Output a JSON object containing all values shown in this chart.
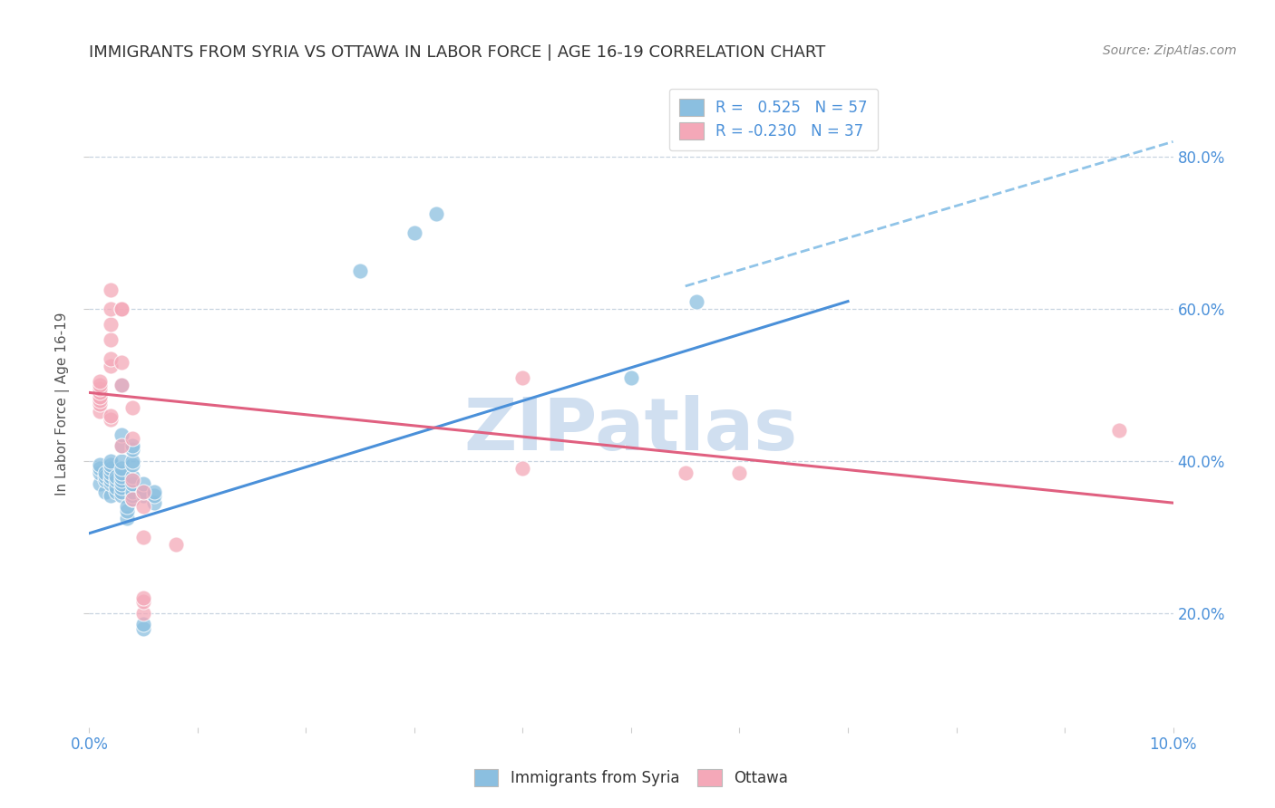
{
  "title": "IMMIGRANTS FROM SYRIA VS OTTAWA IN LABOR FORCE | AGE 16-19 CORRELATION CHART",
  "source": "Source: ZipAtlas.com",
  "ylabel": "In Labor Force | Age 16-19",
  "xlim": [
    0.0,
    0.1
  ],
  "ylim": [
    0.05,
    0.9
  ],
  "ytick_values": [
    0.2,
    0.4,
    0.6,
    0.8
  ],
  "ytick_labels": [
    "20.0%",
    "40.0%",
    "60.0%",
    "80.0%"
  ],
  "xtick_values": [
    0.0,
    0.01,
    0.02,
    0.03,
    0.04,
    0.05,
    0.06,
    0.07,
    0.08,
    0.09,
    0.1
  ],
  "xtick_labels": [
    "0.0%",
    "",
    "",
    "",
    "",
    "",
    "",
    "",
    "",
    "",
    "10.0%"
  ],
  "legend_r_blue": "0.525",
  "legend_n_blue": "57",
  "legend_r_pink": "-0.230",
  "legend_n_pink": "37",
  "blue_color": "#8bbfe0",
  "pink_color": "#f4a8b8",
  "trendline_blue": "#4a90d9",
  "trendline_pink": "#e06080",
  "trendline_dashed_color": "#90c4e8",
  "watermark_color": "#d0dff0",
  "background_color": "#ffffff",
  "grid_color": "#c8d4e0",
  "title_color": "#333333",
  "source_color": "#888888",
  "axis_label_color": "#555555",
  "tick_color": "#4a90d9",
  "blue_scatter": [
    [
      0.001,
      0.37
    ],
    [
      0.001,
      0.385
    ],
    [
      0.001,
      0.39
    ],
    [
      0.001,
      0.395
    ],
    [
      0.0015,
      0.36
    ],
    [
      0.0015,
      0.375
    ],
    [
      0.0015,
      0.38
    ],
    [
      0.0015,
      0.385
    ],
    [
      0.002,
      0.355
    ],
    [
      0.002,
      0.37
    ],
    [
      0.002,
      0.375
    ],
    [
      0.002,
      0.38
    ],
    [
      0.002,
      0.385
    ],
    [
      0.002,
      0.39
    ],
    [
      0.002,
      0.395
    ],
    [
      0.002,
      0.4
    ],
    [
      0.0025,
      0.36
    ],
    [
      0.0025,
      0.365
    ],
    [
      0.0025,
      0.375
    ],
    [
      0.0025,
      0.38
    ],
    [
      0.003,
      0.355
    ],
    [
      0.003,
      0.36
    ],
    [
      0.003,
      0.365
    ],
    [
      0.003,
      0.37
    ],
    [
      0.003,
      0.375
    ],
    [
      0.003,
      0.38
    ],
    [
      0.003,
      0.385
    ],
    [
      0.003,
      0.39
    ],
    [
      0.003,
      0.4
    ],
    [
      0.003,
      0.42
    ],
    [
      0.003,
      0.435
    ],
    [
      0.003,
      0.5
    ],
    [
      0.0035,
      0.325
    ],
    [
      0.0035,
      0.335
    ],
    [
      0.0035,
      0.34
    ],
    [
      0.004,
      0.35
    ],
    [
      0.004,
      0.355
    ],
    [
      0.004,
      0.36
    ],
    [
      0.004,
      0.37
    ],
    [
      0.004,
      0.38
    ],
    [
      0.004,
      0.395
    ],
    [
      0.004,
      0.4
    ],
    [
      0.004,
      0.415
    ],
    [
      0.004,
      0.42
    ],
    [
      0.005,
      0.18
    ],
    [
      0.005,
      0.185
    ],
    [
      0.005,
      0.355
    ],
    [
      0.005,
      0.36
    ],
    [
      0.005,
      0.37
    ],
    [
      0.006,
      0.345
    ],
    [
      0.006,
      0.355
    ],
    [
      0.006,
      0.36
    ],
    [
      0.025,
      0.65
    ],
    [
      0.03,
      0.7
    ],
    [
      0.032,
      0.725
    ],
    [
      0.05,
      0.51
    ],
    [
      0.056,
      0.61
    ]
  ],
  "pink_scatter": [
    [
      0.001,
      0.465
    ],
    [
      0.001,
      0.475
    ],
    [
      0.001,
      0.48
    ],
    [
      0.001,
      0.485
    ],
    [
      0.001,
      0.49
    ],
    [
      0.001,
      0.495
    ],
    [
      0.001,
      0.5
    ],
    [
      0.001,
      0.505
    ],
    [
      0.002,
      0.455
    ],
    [
      0.002,
      0.46
    ],
    [
      0.002,
      0.525
    ],
    [
      0.002,
      0.535
    ],
    [
      0.002,
      0.56
    ],
    [
      0.002,
      0.58
    ],
    [
      0.002,
      0.6
    ],
    [
      0.002,
      0.625
    ],
    [
      0.003,
      0.42
    ],
    [
      0.003,
      0.5
    ],
    [
      0.003,
      0.53
    ],
    [
      0.003,
      0.6
    ],
    [
      0.003,
      0.6
    ],
    [
      0.004,
      0.35
    ],
    [
      0.004,
      0.375
    ],
    [
      0.004,
      0.43
    ],
    [
      0.004,
      0.47
    ],
    [
      0.005,
      0.3
    ],
    [
      0.005,
      0.34
    ],
    [
      0.005,
      0.36
    ],
    [
      0.005,
      0.2
    ],
    [
      0.005,
      0.215
    ],
    [
      0.005,
      0.22
    ],
    [
      0.008,
      0.29
    ],
    [
      0.04,
      0.39
    ],
    [
      0.04,
      0.51
    ],
    [
      0.055,
      0.385
    ],
    [
      0.06,
      0.385
    ],
    [
      0.095,
      0.44
    ]
  ],
  "blue_trendline_x": [
    0.0,
    0.07
  ],
  "blue_trendline_y": [
    0.305,
    0.61
  ],
  "pink_trendline_x": [
    0.0,
    0.1
  ],
  "pink_trendline_y": [
    0.49,
    0.345
  ],
  "dashed_trendline_x": [
    0.055,
    0.1
  ],
  "dashed_trendline_y": [
    0.63,
    0.82
  ]
}
